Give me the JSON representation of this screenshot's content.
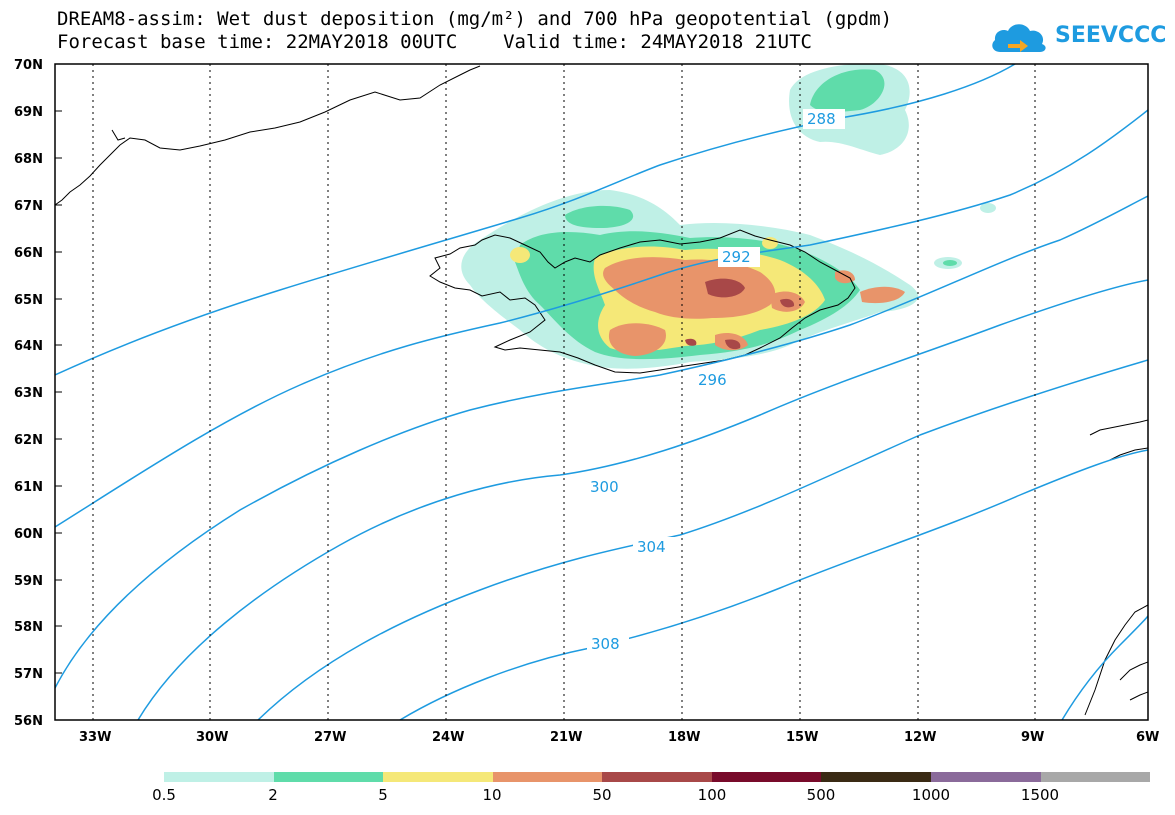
{
  "title": {
    "line1": "DREAM8-assim: Wet dust deposition (mg/m²) and 700 hPa geopotential (gpdm)",
    "line2": "Forecast base time: 22MAY2018 00UTC    Valid time: 24MAY2018 21UTC"
  },
  "logo": {
    "text": "SEEVCCC",
    "icon": "cloud-icon",
    "color": "#1e9be0"
  },
  "axes": {
    "lat_labels": [
      "70N",
      "69N",
      "68N",
      "67N",
      "66N",
      "65N",
      "64N",
      "63N",
      "62N",
      "61N",
      "60N",
      "59N",
      "58N",
      "57N",
      "56N"
    ],
    "lon_labels": [
      "33W",
      "30W",
      "27W",
      "24W",
      "21W",
      "18W",
      "15W",
      "12W",
      "9W",
      "6W"
    ]
  },
  "contours": {
    "color": "#1e9be0",
    "labels": [
      "288",
      "292",
      "296",
      "300",
      "304",
      "308"
    ]
  },
  "legend": {
    "colors": [
      "#bff0e6",
      "#5fdcaa",
      "#f5e878",
      "#e8946a",
      "#a84848",
      "#780a2a",
      "#3a2a14",
      "#8a6a9a",
      "#a8a8a8"
    ],
    "labels": [
      "0.5",
      "2",
      "5",
      "10",
      "50",
      "100",
      "500",
      "1000",
      "1500"
    ]
  }
}
